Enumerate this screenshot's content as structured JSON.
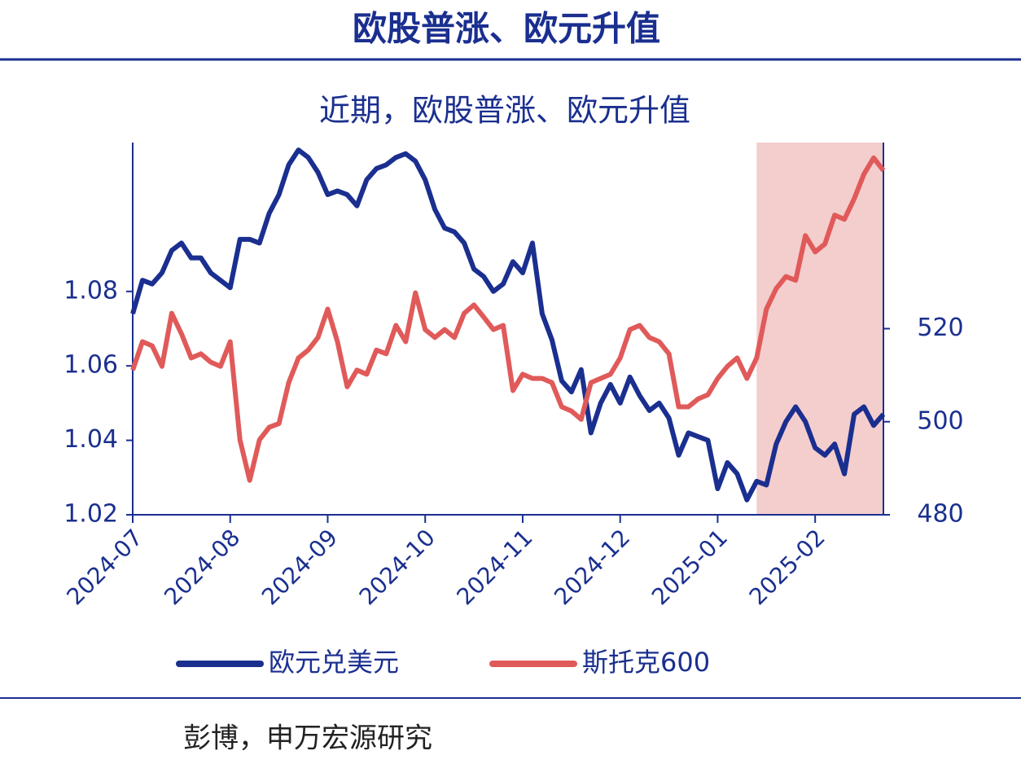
{
  "header": {
    "title": "欧股普涨、欧元升值"
  },
  "footer": {
    "source": "彭博，申万宏源研究"
  },
  "chart_data": {
    "type": "line",
    "title": "近期，欧股普涨、欧元升值",
    "xlim": [
      0,
      77
    ],
    "xticks": [
      {
        "value": 0,
        "label": "2024-07"
      },
      {
        "value": 10,
        "label": "2024-08"
      },
      {
        "value": 20,
        "label": "2024-09"
      },
      {
        "value": 30,
        "label": "2024-10"
      },
      {
        "value": 40,
        "label": "2024-11"
      },
      {
        "value": 50,
        "label": "2024-12"
      },
      {
        "value": 60,
        "label": "2025-01"
      },
      {
        "value": 70,
        "label": "2025-02"
      }
    ],
    "ylim": [
      1.02,
      1.12
    ],
    "yticks": [
      1.02,
      1.04,
      1.06,
      1.08
    ],
    "y2lim": [
      480,
      560
    ],
    "y2ticks": [
      480,
      500,
      520
    ],
    "shaded_range": [
      64,
      77
    ],
    "shaded_color": "#f2c4c4",
    "series": [
      {
        "name": "欧元兑美元",
        "color": "#1a2f8f",
        "values": [
          1.074,
          1.083,
          1.082,
          1.085,
          1.091,
          1.093,
          1.089,
          1.089,
          1.085,
          1.083,
          1.081,
          1.094,
          1.094,
          1.093,
          1.101,
          1.106,
          1.114,
          1.118,
          1.116,
          1.112,
          1.106,
          1.107,
          1.106,
          1.103,
          1.11,
          1.113,
          1.114,
          1.116,
          1.117,
          1.115,
          1.11,
          1.102,
          1.097,
          1.096,
          1.093,
          1.086,
          1.084,
          1.08,
          1.082,
          1.088,
          1.085,
          1.093,
          1.074,
          1.067,
          1.056,
          1.053,
          1.059,
          1.042,
          1.05,
          1.055,
          1.05,
          1.057,
          1.052,
          1.048,
          1.05,
          1.046,
          1.036,
          1.042,
          1.041,
          1.04,
          1.027,
          1.034,
          1.031,
          1.024,
          1.029,
          1.028,
          1.039,
          1.045,
          1.049,
          1.045,
          1.038,
          1.036,
          1.039,
          1.031,
          1.047,
          1.049,
          1.044,
          1.047
        ]
      },
      {
        "name": "斯托克600",
        "color": "#e05a5a",
        "axis": "y2",
        "values": [
          511.1,
          517.2,
          516.3,
          511.9,
          523.3,
          518.9,
          513.7,
          514.6,
          512.8,
          511.9,
          517.2,
          496.1,
          487.4,
          496.1,
          498.8,
          499.6,
          508.4,
          513.7,
          515.4,
          518.1,
          524.2,
          517.2,
          507.5,
          511.1,
          510.2,
          515.4,
          514.6,
          520.7,
          517.2,
          527.7,
          519.8,
          518.1,
          519.8,
          518.1,
          523.3,
          525.1,
          522.5,
          519.8,
          520.7,
          506.7,
          510.2,
          509.3,
          509.3,
          508.4,
          503.2,
          502.3,
          500.5,
          508.4,
          509.3,
          510.2,
          513.7,
          519.8,
          520.7,
          518.1,
          517.2,
          514.6,
          503.2,
          503.2,
          504.9,
          505.8,
          509.3,
          511.9,
          513.7,
          509.3,
          513.7,
          524.2,
          528.6,
          531.2,
          530.4,
          540.0,
          536.5,
          538.2,
          544.4,
          543.5,
          547.9,
          553.2,
          556.7,
          554.0
        ]
      }
    ]
  }
}
